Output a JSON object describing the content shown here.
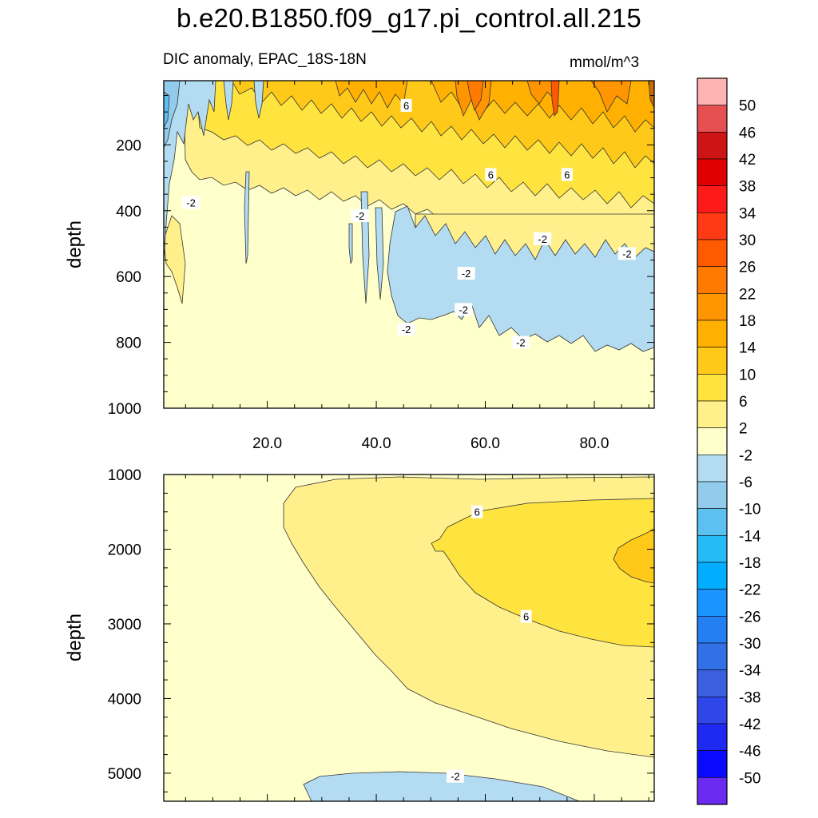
{
  "header": {
    "title": "b.e20.B1850.f09_g17.pi_control.all.215",
    "subtitle_left": "DIC anomaly, EPAC_18S-18N",
    "subtitle_right": "mmol/m^3"
  },
  "colors": {
    "light_yellow": "#FFFFCC",
    "pale_yellow": "#FFF08C",
    "yellow": "#FFE440",
    "gold": "#FFC91A",
    "amber": "#FFB100",
    "orange": "#FF8C00",
    "dark_orange": "#FF6A00",
    "light_blue": "#B3DCF2",
    "sky_blue": "#92CBEC"
  },
  "chart_data": [
    {
      "type": "contour",
      "panel": "upper",
      "ylabel": "depth",
      "xlim": [
        1,
        91
      ],
      "ylim": [
        1000,
        5
      ],
      "y_inverted": true,
      "xticks": [
        20.0,
        40.0,
        60.0,
        80.0
      ],
      "xtick_labels": [
        "20.0",
        "40.0",
        "60.0",
        "80.0"
      ],
      "yticks": [
        200,
        400,
        600,
        800,
        1000
      ],
      "ytick_labels": [
        "200",
        "400",
        "600",
        "800",
        "1000"
      ],
      "contour_labels": [
        {
          "text": "6",
          "x": 45.5,
          "y": 80
        },
        {
          "text": "6",
          "x": 61.0,
          "y": 290
        },
        {
          "text": "6",
          "x": 75.0,
          "y": 290
        },
        {
          "text": "-2",
          "x": 6.0,
          "y": 375
        },
        {
          "text": "-2",
          "x": 37.0,
          "y": 415
        },
        {
          "text": "-2",
          "x": 70.5,
          "y": 485
        },
        {
          "text": "-2",
          "x": 86.0,
          "y": 530
        },
        {
          "text": "-2",
          "x": 56.5,
          "y": 590
        },
        {
          "text": "-2",
          "x": 56.0,
          "y": 700
        },
        {
          "text": "-2",
          "x": 45.5,
          "y": 760
        },
        {
          "text": "-2",
          "x": 66.5,
          "y": 800
        }
      ]
    },
    {
      "type": "contour",
      "panel": "lower",
      "ylabel": "depth",
      "xlim": [
        1,
        91
      ],
      "ylim": [
        1000,
        5375
      ],
      "y_inverted": true,
      "yticks": [
        1000,
        2000,
        3000,
        4000,
        5000
      ],
      "ytick_labels": [
        "1000",
        "2000",
        "3000",
        "4000",
        "5000"
      ],
      "contour_labels": [
        {
          "text": "6",
          "x": 58.5,
          "y": 1500
        },
        {
          "text": "6",
          "x": 67.5,
          "y": 2900
        },
        {
          "text": "-2",
          "x": 54.5,
          "y": 5040
        }
      ]
    },
    {
      "type": "colorbar",
      "levels": [
        "50",
        "46",
        "42",
        "38",
        "34",
        "30",
        "26",
        "22",
        "18",
        "14",
        "10",
        "6",
        "2",
        "-2",
        "-6",
        "-10",
        "-14",
        "-18",
        "-22",
        "-26",
        "-30",
        "-34",
        "-38",
        "-42",
        "-46",
        "-50"
      ],
      "bin_colors": [
        "#FFB3B3",
        "#E55050",
        "#CD1515",
        "#E10000",
        "#FF1A1A",
        "#FF3A14",
        "#FF5A00",
        "#FF7A00",
        "#FF9500",
        "#FFB000",
        "#FFC91A",
        "#FFE440",
        "#FFF08C",
        "#FFFFCC",
        "#B3DCF2",
        "#92CBEC",
        "#5CC0F0",
        "#24BBF7",
        "#00ADFF",
        "#1A95FF",
        "#247FF2",
        "#3270E8",
        "#3B5FDF",
        "#2F46E8",
        "#1E2AF2",
        "#0A0AFF",
        "#6A2AEF"
      ]
    }
  ]
}
